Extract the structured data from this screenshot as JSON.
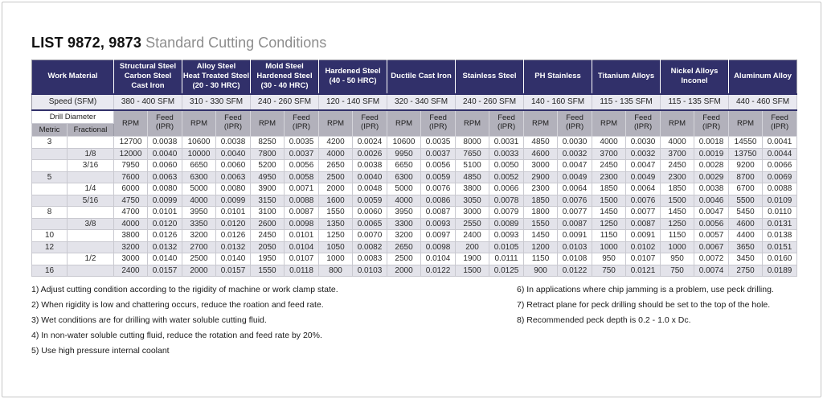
{
  "page": {
    "title_bold": "LIST 9872, 9873",
    "title_rest": "Standard Cutting Conditions"
  },
  "table": {
    "corner_label": "Work Material",
    "speed_label": "Speed (SFM)",
    "drill_diameter_label": "Drill Diameter",
    "metric_label": "Metric",
    "fractional_label": "Fractional",
    "rpm_label": "RPM",
    "feed_label_line1": "Feed",
    "feed_label_line2": "(IPR)",
    "header_color": "#31306a",
    "alt_row_color": "#e3e3ea",
    "materials": [
      {
        "name_lines": [
          "Structural Steel",
          "Carbon Steel",
          "Cast Iron"
        ],
        "speed": "380 - 400 SFM"
      },
      {
        "name_lines": [
          "Alloy Steel",
          "Heat Treated Steel",
          "(20 - 30 HRC)"
        ],
        "speed": "310 - 330 SFM"
      },
      {
        "name_lines": [
          "Mold Steel",
          "Hardened Steel",
          "(30 - 40 HRC)"
        ],
        "speed": "240 - 260 SFM"
      },
      {
        "name_lines": [
          "Hardened Steel",
          "(40 - 50 HRC)"
        ],
        "speed": "120 - 140 SFM"
      },
      {
        "name_lines": [
          "Ductile Cast Iron"
        ],
        "speed": "320 - 340 SFM"
      },
      {
        "name_lines": [
          "Stainless Steel"
        ],
        "speed": "240 - 260 SFM"
      },
      {
        "name_lines": [
          "PH Stainless"
        ],
        "speed": "140 - 160 SFM"
      },
      {
        "name_lines": [
          "Titanium Alloys"
        ],
        "speed": "115 - 135 SFM"
      },
      {
        "name_lines": [
          "Nickel Alloys",
          "Inconel"
        ],
        "speed": "115 - 135 SFM"
      },
      {
        "name_lines": [
          "Aluminum Alloy"
        ],
        "speed": "440 - 460 SFM"
      }
    ],
    "rows": [
      {
        "metric": "3",
        "fractional": "",
        "values": [
          [
            "12700",
            "0.0038"
          ],
          [
            "10600",
            "0.0038"
          ],
          [
            "8250",
            "0.0035"
          ],
          [
            "4200",
            "0.0024"
          ],
          [
            "10600",
            "0.0035"
          ],
          [
            "8000",
            "0.0031"
          ],
          [
            "4850",
            "0.0030"
          ],
          [
            "4000",
            "0.0030"
          ],
          [
            "4000",
            "0.0018"
          ],
          [
            "14550",
            "0.0041"
          ]
        ]
      },
      {
        "metric": "",
        "fractional": "1/8",
        "values": [
          [
            "12000",
            "0.0040"
          ],
          [
            "10000",
            "0.0040"
          ],
          [
            "7800",
            "0.0037"
          ],
          [
            "4000",
            "0.0026"
          ],
          [
            "9950",
            "0.0037"
          ],
          [
            "7650",
            "0.0033"
          ],
          [
            "4600",
            "0.0032"
          ],
          [
            "3700",
            "0.0032"
          ],
          [
            "3700",
            "0.0019"
          ],
          [
            "13750",
            "0.0044"
          ]
        ]
      },
      {
        "metric": "",
        "fractional": "3/16",
        "values": [
          [
            "7950",
            "0.0060"
          ],
          [
            "6650",
            "0.0060"
          ],
          [
            "5200",
            "0.0056"
          ],
          [
            "2650",
            "0.0038"
          ],
          [
            "6650",
            "0.0056"
          ],
          [
            "5100",
            "0.0050"
          ],
          [
            "3000",
            "0.0047"
          ],
          [
            "2450",
            "0.0047"
          ],
          [
            "2450",
            "0.0028"
          ],
          [
            "9200",
            "0.0066"
          ]
        ]
      },
      {
        "metric": "5",
        "fractional": "",
        "values": [
          [
            "7600",
            "0.0063"
          ],
          [
            "6300",
            "0.0063"
          ],
          [
            "4950",
            "0.0058"
          ],
          [
            "2500",
            "0.0040"
          ],
          [
            "6300",
            "0.0059"
          ],
          [
            "4850",
            "0.0052"
          ],
          [
            "2900",
            "0.0049"
          ],
          [
            "2300",
            "0.0049"
          ],
          [
            "2300",
            "0.0029"
          ],
          [
            "8700",
            "0.0069"
          ]
        ]
      },
      {
        "metric": "",
        "fractional": "1/4",
        "values": [
          [
            "6000",
            "0.0080"
          ],
          [
            "5000",
            "0.0080"
          ],
          [
            "3900",
            "0.0071"
          ],
          [
            "2000",
            "0.0048"
          ],
          [
            "5000",
            "0.0076"
          ],
          [
            "3800",
            "0.0066"
          ],
          [
            "2300",
            "0.0064"
          ],
          [
            "1850",
            "0.0064"
          ],
          [
            "1850",
            "0.0038"
          ],
          [
            "6700",
            "0.0088"
          ]
        ]
      },
      {
        "metric": "",
        "fractional": "5/16",
        "values": [
          [
            "4750",
            "0.0099"
          ],
          [
            "4000",
            "0.0099"
          ],
          [
            "3150",
            "0.0088"
          ],
          [
            "1600",
            "0.0059"
          ],
          [
            "4000",
            "0.0086"
          ],
          [
            "3050",
            "0.0078"
          ],
          [
            "1850",
            "0.0076"
          ],
          [
            "1500",
            "0.0076"
          ],
          [
            "1500",
            "0.0046"
          ],
          [
            "5500",
            "0.0109"
          ]
        ]
      },
      {
        "metric": "8",
        "fractional": "",
        "values": [
          [
            "4700",
            "0.0101"
          ],
          [
            "3950",
            "0.0101"
          ],
          [
            "3100",
            "0.0087"
          ],
          [
            "1550",
            "0.0060"
          ],
          [
            "3950",
            "0.0087"
          ],
          [
            "3000",
            "0.0079"
          ],
          [
            "1800",
            "0.0077"
          ],
          [
            "1450",
            "0.0077"
          ],
          [
            "1450",
            "0.0047"
          ],
          [
            "5450",
            "0.0110"
          ]
        ]
      },
      {
        "metric": "",
        "fractional": "3/8",
        "values": [
          [
            "4000",
            "0.0120"
          ],
          [
            "3350",
            "0.0120"
          ],
          [
            "2600",
            "0.0098"
          ],
          [
            "1350",
            "0.0065"
          ],
          [
            "3300",
            "0.0093"
          ],
          [
            "2550",
            "0.0089"
          ],
          [
            "1550",
            "0.0087"
          ],
          [
            "1250",
            "0.0087"
          ],
          [
            "1250",
            "0.0056"
          ],
          [
            "4600",
            "0.0131"
          ]
        ]
      },
      {
        "metric": "10",
        "fractional": "",
        "values": [
          [
            "3800",
            "0.0126"
          ],
          [
            "3200",
            "0.0126"
          ],
          [
            "2450",
            "0.0101"
          ],
          [
            "1250",
            "0.0070"
          ],
          [
            "3200",
            "0.0097"
          ],
          [
            "2400",
            "0.0093"
          ],
          [
            "1450",
            "0.0091"
          ],
          [
            "1150",
            "0.0091"
          ],
          [
            "1150",
            "0.0057"
          ],
          [
            "4400",
            "0.0138"
          ]
        ]
      },
      {
        "metric": "12",
        "fractional": "",
        "values": [
          [
            "3200",
            "0.0132"
          ],
          [
            "2700",
            "0.0132"
          ],
          [
            "2050",
            "0.0104"
          ],
          [
            "1050",
            "0.0082"
          ],
          [
            "2650",
            "0.0098"
          ],
          [
            "200",
            "0.0105"
          ],
          [
            "1200",
            "0.0103"
          ],
          [
            "1000",
            "0.0102"
          ],
          [
            "1000",
            "0.0067"
          ],
          [
            "3650",
            "0.0151"
          ]
        ]
      },
      {
        "metric": "",
        "fractional": "1/2",
        "values": [
          [
            "3000",
            "0.0140"
          ],
          [
            "2500",
            "0.0140"
          ],
          [
            "1950",
            "0.0107"
          ],
          [
            "1000",
            "0.0083"
          ],
          [
            "2500",
            "0.0104"
          ],
          [
            "1900",
            "0.0111"
          ],
          [
            "1150",
            "0.0108"
          ],
          [
            "950",
            "0.0107"
          ],
          [
            "950",
            "0.0072"
          ],
          [
            "3450",
            "0.0160"
          ]
        ]
      },
      {
        "metric": "16",
        "fractional": "",
        "values": [
          [
            "2400",
            "0.0157"
          ],
          [
            "2000",
            "0.0157"
          ],
          [
            "1550",
            "0.0118"
          ],
          [
            "800",
            "0.0103"
          ],
          [
            "2000",
            "0.0122"
          ],
          [
            "1500",
            "0.0125"
          ],
          [
            "900",
            "0.0122"
          ],
          [
            "750",
            "0.0121"
          ],
          [
            "750",
            "0.0074"
          ],
          [
            "2750",
            "0.0189"
          ]
        ]
      }
    ]
  },
  "notes_left": [
    "1) Adjust cutting condition according to the rigidity of machine or work clamp state.",
    "2) When rigidity is low and chattering occurs, reduce the roation and feed rate.",
    "3) Wet conditions are for drilling with water soluble cutting fluid.",
    "4) In non-water soluble cutting fluid, reduce the rotation and feed rate by 20%.",
    "5) Use high pressure internal coolant"
  ],
  "notes_right": [
    "6) In applications where chip jamming is a problem, use peck drilling.",
    "7) Retract plane for peck drilling should be set to the top of the hole.",
    "8) Recommended peck depth is 0.2 - 1.0 x Dc."
  ]
}
